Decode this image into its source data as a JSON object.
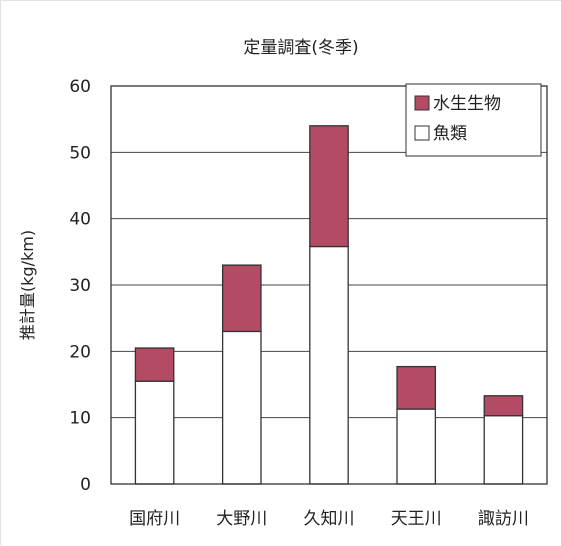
{
  "chart_data": {
    "type": "bar",
    "stacked": true,
    "title": "定量調査(冬季)",
    "ylabel": "推計量(kg/km)",
    "xlabel": "",
    "ylim": [
      0,
      60
    ],
    "yticks": [
      0,
      10,
      20,
      30,
      40,
      50,
      60
    ],
    "grid": true,
    "legend_position": "top-right",
    "categories": [
      "国府川",
      "大野川",
      "久知川",
      "天王川",
      "諏訪川"
    ],
    "series": [
      {
        "name": "魚類",
        "values": [
          15.5,
          23,
          35.8,
          11.3,
          10.3
        ],
        "color": "#ffffff"
      },
      {
        "name": "水生生物",
        "values": [
          5,
          10,
          18.2,
          6.4,
          3
        ],
        "color": "#b24b63"
      }
    ]
  }
}
